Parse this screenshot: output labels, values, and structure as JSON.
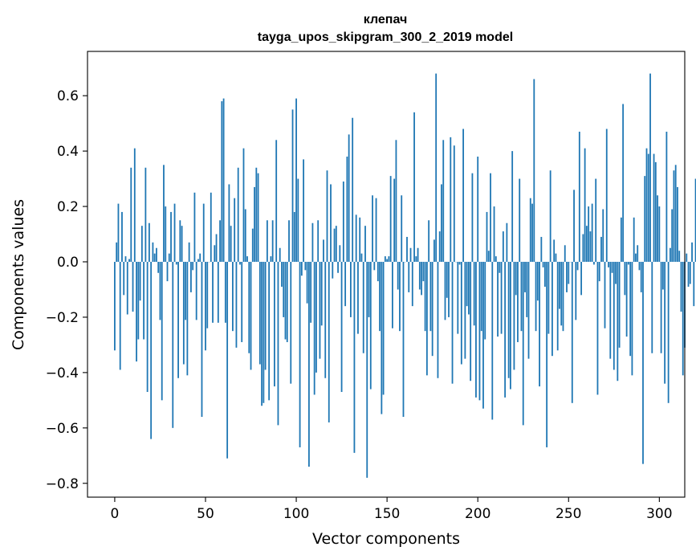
{
  "chart_data": {
    "type": "bar",
    "title": "клепач",
    "subtitle": "tayga_upos_skipgram_300_2_2019 model",
    "xlabel": "Vector components",
    "ylabel": "Components values",
    "xlim": [
      -15,
      314
    ],
    "ylim": [
      -0.85,
      0.76
    ],
    "xticks": [
      0,
      50,
      100,
      150,
      200,
      250,
      300
    ],
    "yticks": [
      -0.8,
      -0.6,
      -0.4,
      -0.2,
      0.0,
      0.2,
      0.4,
      0.6
    ],
    "ytick_labels": [
      "−0.8",
      "−0.6",
      "−0.4",
      "−0.2",
      "0.0",
      "0.2",
      "0.4",
      "0.6"
    ],
    "bar_color": "#1f77b4",
    "values": [
      -0.32,
      0.07,
      0.21,
      -0.39,
      0.18,
      -0.12,
      0.02,
      -0.19,
      0.01,
      0.34,
      -0.18,
      0.41,
      -0.36,
      -0.28,
      -0.14,
      0.13,
      -0.28,
      0.34,
      -0.47,
      0.14,
      -0.64,
      0.07,
      0.03,
      0.05,
      -0.04,
      -0.21,
      -0.5,
      0.35,
      0.2,
      -0.07,
      0.03,
      0.18,
      -0.6,
      0.21,
      -0.01,
      -0.42,
      0.15,
      0.13,
      -0.37,
      -0.21,
      -0.41,
      0.07,
      -0.11,
      -0.03,
      0.25,
      -0.21,
      0.01,
      0.03,
      -0.56,
      0.21,
      -0.32,
      -0.24,
      0.0,
      0.25,
      -0.22,
      0.06,
      0.1,
      -0.22,
      0.15,
      0.58,
      0.59,
      -0.22,
      -0.71,
      0.28,
      0.13,
      -0.25,
      0.23,
      -0.31,
      0.34,
      -0.01,
      -0.29,
      0.41,
      0.19,
      0.02,
      -0.33,
      -0.39,
      0.12,
      0.27,
      0.34,
      0.32,
      -0.37,
      -0.52,
      -0.51,
      -0.39,
      0.15,
      -0.5,
      0.02,
      0.15,
      -0.45,
      0.44,
      -0.59,
      0.05,
      -0.09,
      -0.2,
      -0.28,
      -0.29,
      0.15,
      -0.44,
      0.55,
      0.18,
      0.59,
      0.3,
      -0.67,
      -0.05,
      0.37,
      -0.03,
      -0.15,
      -0.74,
      -0.22,
      0.14,
      -0.48,
      -0.4,
      0.15,
      -0.35,
      -0.23,
      0.08,
      -0.42,
      0.33,
      -0.58,
      0.28,
      -0.06,
      0.12,
      0.13,
      -0.04,
      0.06,
      -0.47,
      0.29,
      -0.16,
      0.38,
      0.46,
      -0.2,
      0.52,
      -0.69,
      0.17,
      -0.26,
      0.16,
      0.03,
      -0.33,
      0.13,
      -0.78,
      -0.2,
      -0.46,
      0.24,
      -0.03,
      0.23,
      -0.07,
      -0.25,
      -0.55,
      -0.48,
      0.02,
      0.01,
      0.02,
      0.31,
      -0.24,
      0.3,
      0.44,
      -0.1,
      -0.25,
      0.24,
      -0.56,
      0.0,
      0.09,
      -0.11,
      0.05,
      -0.16,
      0.54,
      0.02,
      0.05,
      -0.1,
      -0.12,
      -0.07,
      -0.25,
      -0.41,
      0.15,
      -0.25,
      -0.34,
      0.08,
      0.68,
      -0.42,
      0.11,
      0.28,
      0.44,
      -0.21,
      -0.13,
      -0.2,
      0.45,
      -0.44,
      0.42,
      0.0,
      -0.26,
      -0.01,
      -0.37,
      0.48,
      -0.35,
      -0.16,
      -0.19,
      -0.43,
      0.32,
      -0.23,
      -0.49,
      0.38,
      -0.5,
      -0.25,
      -0.53,
      -0.28,
      0.18,
      0.04,
      0.32,
      -0.57,
      0.2,
      0.02,
      -0.27,
      -0.04,
      -0.26,
      0.11,
      -0.49,
      0.14,
      -0.42,
      -0.46,
      0.4,
      -0.39,
      -0.12,
      -0.29,
      0.3,
      -0.25,
      -0.59,
      -0.11,
      -0.2,
      -0.35,
      0.23,
      0.21,
      0.66,
      -0.25,
      -0.14,
      -0.45,
      0.09,
      -0.02,
      -0.09,
      -0.67,
      -0.26,
      0.33,
      -0.34,
      0.08,
      0.03,
      -0.32,
      -0.17,
      -0.23,
      -0.25,
      0.06,
      -0.11,
      -0.08,
      0.0,
      -0.51,
      0.26,
      -0.21,
      -0.03,
      0.47,
      -0.12,
      0.1,
      0.41,
      0.13,
      0.2,
      0.11,
      0.21,
      -0.01,
      0.3,
      -0.48,
      -0.07,
      0.09,
      0.19,
      -0.24,
      0.48,
      -0.02,
      -0.35,
      -0.04,
      -0.39,
      -0.08,
      -0.43,
      -0.31,
      0.16,
      0.57,
      -0.12,
      -0.27,
      -0.01,
      -0.34,
      -0.41,
      0.16,
      0.03,
      0.06,
      -0.03,
      -0.11,
      -0.73,
      0.31,
      0.41,
      0.39,
      0.68,
      -0.33,
      0.39,
      0.36,
      0.24,
      0.2,
      -0.33,
      -0.1,
      -0.44,
      0.47,
      -0.51,
      0.05,
      0.19,
      0.33,
      0.35,
      0.27,
      0.04,
      -0.18,
      -0.41,
      -0.31,
      0.03,
      -0.09,
      -0.08,
      0.07,
      -0.16,
      0.3,
      0.32
    ]
  }
}
